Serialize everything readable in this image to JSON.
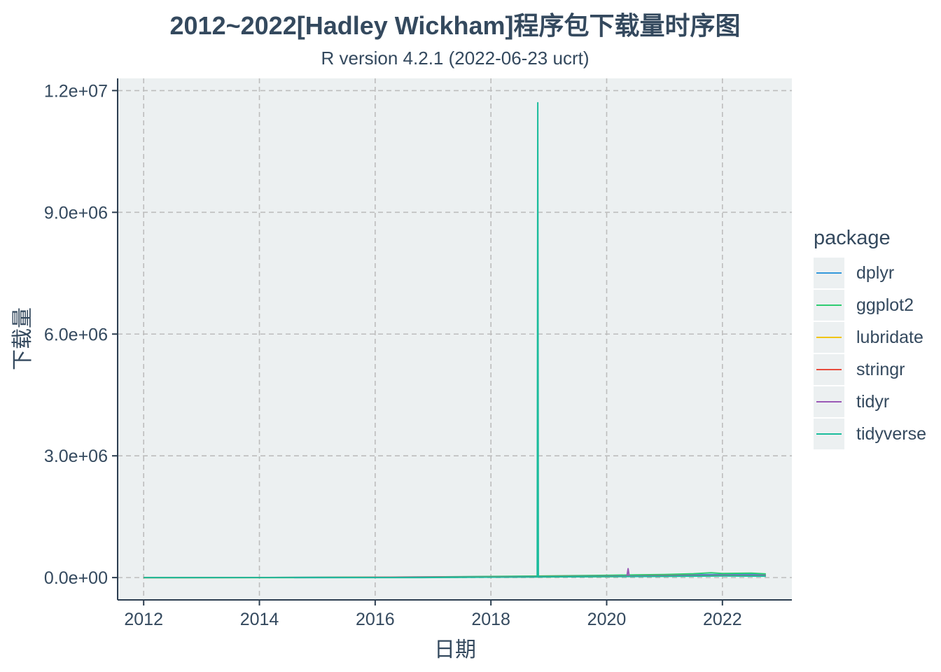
{
  "chart_data": {
    "type": "line",
    "title": "2012~2022[Hadley Wickham]程序包下载量时序图",
    "subtitle": "R version 4.2.1 (2022-06-23 ucrt)",
    "xlabel": "日期",
    "ylabel": "下载量",
    "xlim": [
      2011.55,
      2023.2
    ],
    "ylim": [
      -550000,
      12300000
    ],
    "x_ticks": [
      2012,
      2014,
      2016,
      2018,
      2020,
      2022
    ],
    "x_tick_labels": [
      "2012",
      "2014",
      "2016",
      "2018",
      "2020",
      "2022"
    ],
    "y_ticks": [
      0,
      3000000,
      6000000,
      9000000,
      12000000
    ],
    "y_tick_labels": [
      "0.0e+00",
      "3.0e+06",
      "6.0e+06",
      "9.0e+06",
      "1.2e+07"
    ],
    "grid": true,
    "legend_position": "right",
    "legend_title": "package",
    "series": [
      {
        "name": "dplyr",
        "color": "#3498db",
        "x": [
          2012.0,
          2014.0,
          2016.0,
          2017.0,
          2018.0,
          2019.0,
          2020.0,
          2020.5,
          2021.0,
          2021.5,
          2022.0,
          2022.5,
          2022.75
        ],
        "values": [
          0,
          2000,
          8000,
          15000,
          25000,
          35000,
          45000,
          55000,
          60000,
          70000,
          75000,
          80000,
          78000
        ]
      },
      {
        "name": "ggplot2",
        "color": "#2ecc71",
        "x": [
          2012.0,
          2014.0,
          2016.0,
          2017.0,
          2018.0,
          2019.0,
          2020.0,
          2020.5,
          2021.0,
          2021.5,
          2021.8,
          2022.0,
          2022.5,
          2022.75
        ],
        "values": [
          0,
          2500,
          9000,
          18000,
          28000,
          40000,
          55000,
          65000,
          75000,
          95000,
          120000,
          100000,
          110000,
          90000
        ]
      },
      {
        "name": "lubridate",
        "color": "#f1c40f",
        "x": [
          2012.0,
          2014.0,
          2016.0,
          2018.0,
          2019.0,
          2020.0,
          2021.0,
          2022.0,
          2022.75
        ],
        "values": [
          0,
          1000,
          4000,
          12000,
          18000,
          25000,
          35000,
          45000,
          40000
        ]
      },
      {
        "name": "stringr",
        "color": "#e74c3c",
        "x": [
          2012.0,
          2014.0,
          2016.0,
          2018.0,
          2019.0,
          2020.0,
          2021.0,
          2022.0,
          2022.75
        ],
        "values": [
          0,
          1500,
          6000,
          16000,
          24000,
          32000,
          45000,
          55000,
          50000
        ]
      },
      {
        "name": "tidyr",
        "color": "#9b59b6",
        "x": [
          2014.6,
          2016.0,
          2018.0,
          2019.0,
          2020.0,
          2020.35,
          2020.37,
          2020.39,
          2021.0,
          2022.0,
          2022.75
        ],
        "values": [
          0,
          3000,
          12000,
          20000,
          30000,
          35000,
          220000,
          35000,
          40000,
          50000,
          45000
        ]
      },
      {
        "name": "tidyverse",
        "color": "#1abc9c",
        "x": [
          2012.0,
          2016.8,
          2017.5,
          2018.0,
          2018.8,
          2018.81,
          2018.82,
          2019.0,
          2020.0,
          2021.0,
          2022.0,
          2022.75
        ],
        "values": [
          0,
          0,
          5000,
          10000,
          15000,
          11700000,
          15000,
          18000,
          25000,
          30000,
          40000,
          35000
        ]
      }
    ]
  }
}
